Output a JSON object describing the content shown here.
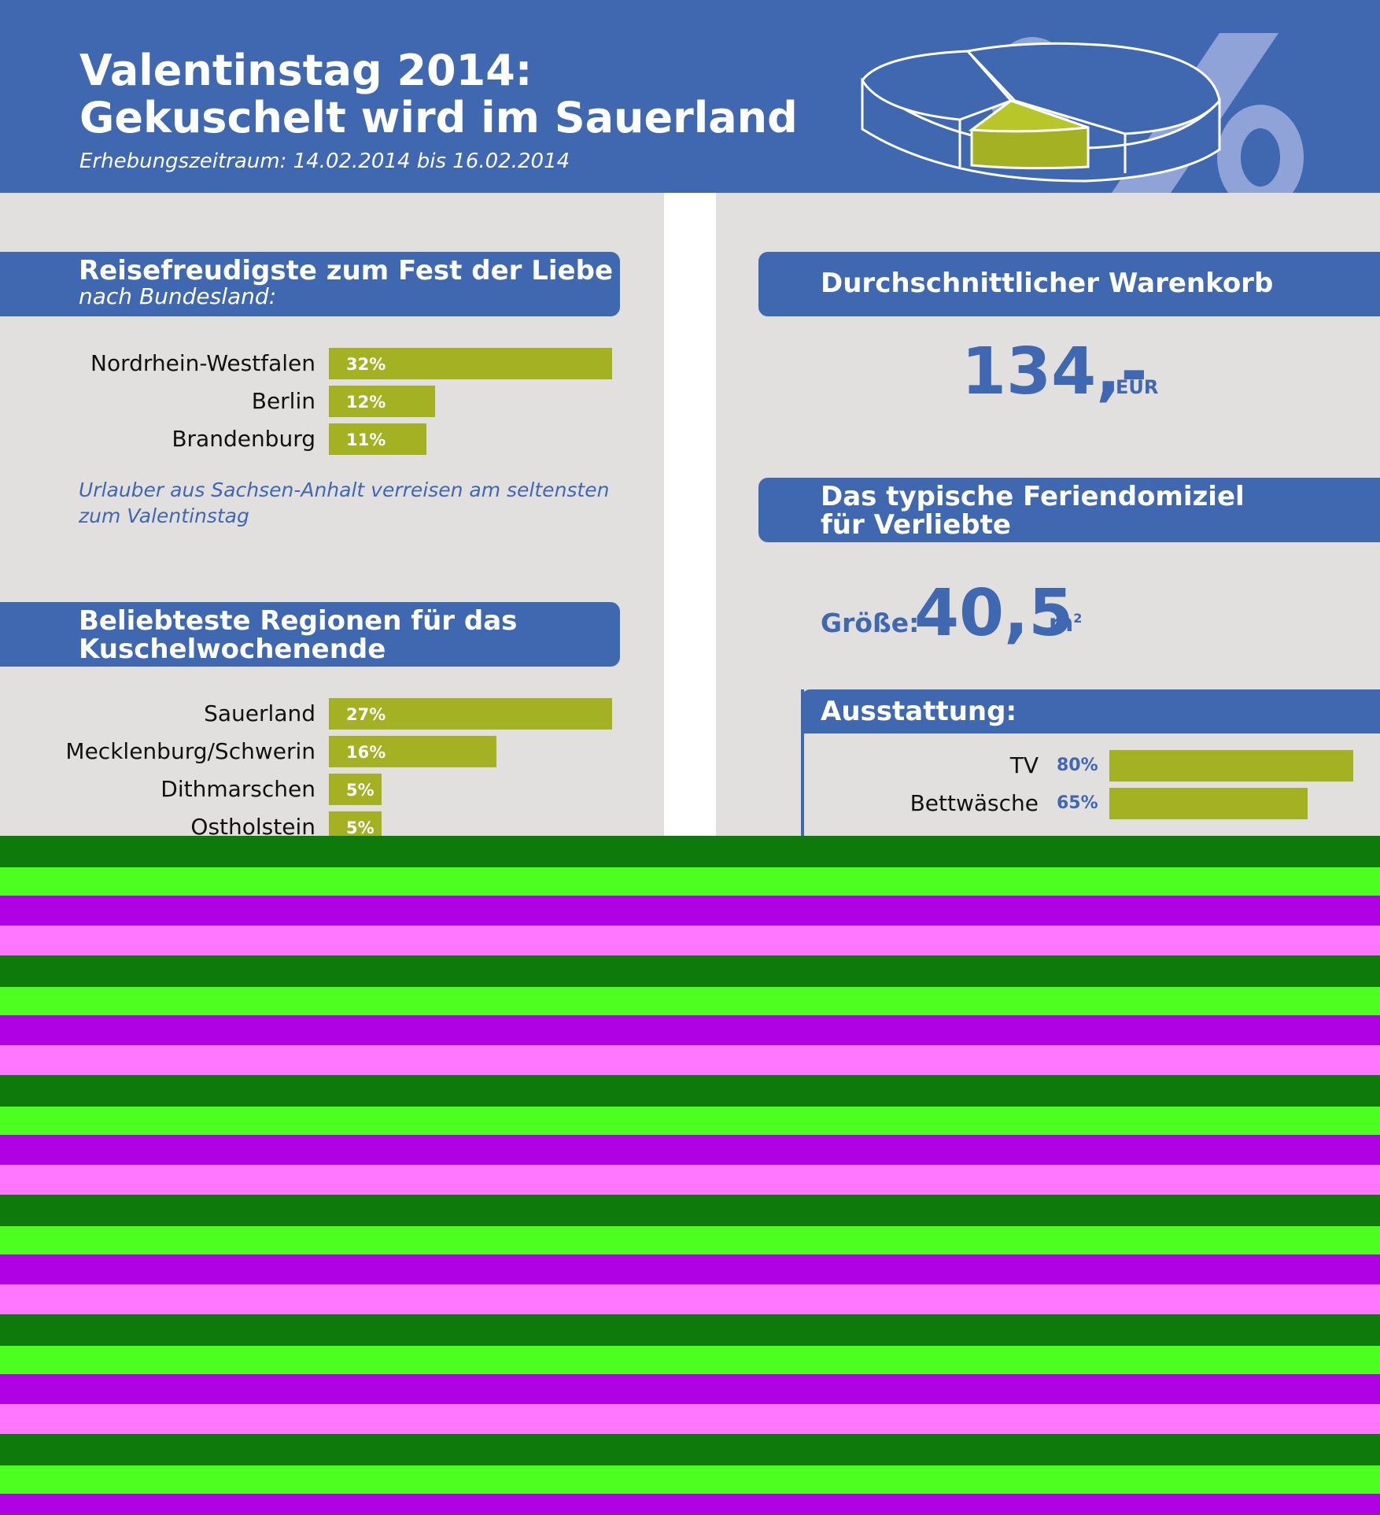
{
  "header": {
    "title_line1": "Valentinstag 2014:",
    "title_line2": "Gekuschelt wird im Sauerland",
    "subtitle": "Erhebungszeitraum: 14.02.2014 bis 16.02.2014",
    "colors": {
      "header_bg": "#3f68b1",
      "bar": "#a3b122",
      "pie_highlight": "#a3b122",
      "percent_sign": "#8fa3d8"
    },
    "icons": [
      "pie-chart-icon",
      "percent-icon"
    ]
  },
  "section_travel": {
    "title": "Reisefreudigste zum Fest der Liebe",
    "subtitle": "nach Bundesland:",
    "note": "Urlauber aus Sachsen-Anhalt verreisen am seltensten zum Valentinstag"
  },
  "section_regions": {
    "title_line1": "Beliebteste Regionen für das",
    "title_line2": "Kuschelwochenende"
  },
  "section_basket": {
    "title": "Durchschnittlicher Warenkorb",
    "value": "134,-",
    "unit": "EUR"
  },
  "section_domicile": {
    "title_line1": "Das typische Feriendomiziel",
    "title_line2": "für Verliebte",
    "size_label": "Größe:",
    "size_value": "40,5",
    "size_unit": "m",
    "size_unit_sup": "2"
  },
  "section_equipment": {
    "title": "Ausstattung:"
  },
  "chart_data": [
    {
      "type": "bar",
      "orientation": "horizontal",
      "categories": [
        "Nordrhein-Westfalen",
        "Berlin",
        "Brandenburg"
      ],
      "values": [
        32,
        12,
        11
      ],
      "value_labels": [
        "32%",
        "12%",
        "11%"
      ],
      "title": "Reisefreudigste zum Fest der Liebe",
      "subtitle": "nach Bundesland:"
    },
    {
      "type": "bar",
      "orientation": "horizontal",
      "categories": [
        "Sauerland",
        "Mecklenburg/Schwerin",
        "Dithmarschen",
        "Ostholstein"
      ],
      "values": [
        27,
        16,
        5,
        5
      ],
      "value_labels": [
        "27%",
        "16%",
        "5%",
        "5%"
      ],
      "title": "Beliebteste Regionen für das Kuschelwochenende"
    },
    {
      "type": "bar",
      "orientation": "horizontal",
      "categories": [
        "TV",
        "Bettwäsche"
      ],
      "values": [
        80,
        65
      ],
      "value_labels": [
        "80%",
        "65%"
      ],
      "title": "Ausstattung:"
    }
  ]
}
